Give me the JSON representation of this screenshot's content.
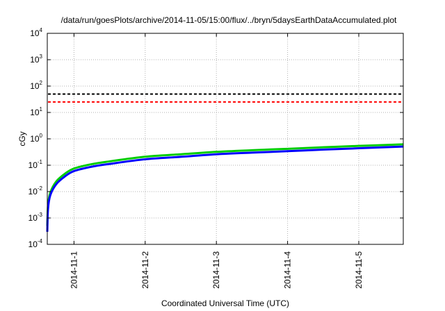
{
  "chart_data": {
    "type": "line",
    "title": "/data/run/goesPlots/archive/2014-11-05/15:00/flux/../bryn/5daysEarthDataAccumulated.plot",
    "xlabel": "Coordinated Universal Time (UTC)",
    "ylabel": "cGy",
    "yscale": "log",
    "ylim": [
      0.0001,
      10000
    ],
    "xlim": [
      "2014-10-31T15:00",
      "2014-11-05T15:00"
    ],
    "grid": true,
    "x_ticks": [
      "2014-11-1",
      "2014-11-2",
      "2014-11-3",
      "2014-11-4",
      "2014-11-5"
    ],
    "y_ticks": [
      {
        "base": "10",
        "exp": "-4",
        "value": 0.0001
      },
      {
        "base": "10",
        "exp": "-3",
        "value": 0.001
      },
      {
        "base": "10",
        "exp": "-2",
        "value": 0.01
      },
      {
        "base": "10",
        "exp": "-1",
        "value": 0.1
      },
      {
        "base": "10",
        "exp": "0",
        "value": 1
      },
      {
        "base": "10",
        "exp": "1",
        "value": 10
      },
      {
        "base": "10",
        "exp": "2",
        "value": 100
      },
      {
        "base": "10",
        "exp": "3",
        "value": 1000
      },
      {
        "base": "10",
        "exp": "4",
        "value": 10000
      }
    ],
    "reference_lines": [
      {
        "value": 50,
        "color": "#000000",
        "style": "dashed"
      },
      {
        "value": 25,
        "color": "#ff0000",
        "style": "dashed"
      }
    ],
    "series": [
      {
        "color": "#00cc00",
        "x": [
          "2014-10-31T15:00",
          "2014-10-31T15:15",
          "2014-10-31T16:00",
          "2014-10-31T18:00",
          "2014-10-31T21:00",
          "2014-11-01T00:00",
          "2014-11-01T06:00",
          "2014-11-01T12:00",
          "2014-11-02T00:00",
          "2014-11-02T12:00",
          "2014-11-03T00:00",
          "2014-11-03T12:00",
          "2014-11-04T00:00",
          "2014-11-04T12:00",
          "2014-11-05T00:00",
          "2014-11-05T15:00"
        ],
        "values": [
          0.0005,
          0.003,
          0.009,
          0.024,
          0.048,
          0.075,
          0.11,
          0.14,
          0.21,
          0.26,
          0.32,
          0.37,
          0.42,
          0.48,
          0.54,
          0.62
        ]
      },
      {
        "color": "#0000ff",
        "x": [
          "2014-10-31T15:00",
          "2014-10-31T15:15",
          "2014-10-31T16:00",
          "2014-10-31T18:00",
          "2014-10-31T21:00",
          "2014-11-01T00:00",
          "2014-11-01T06:00",
          "2014-11-01T12:00",
          "2014-11-02T00:00",
          "2014-11-02T12:00",
          "2014-11-03T00:00",
          "2014-11-03T12:00",
          "2014-11-04T00:00",
          "2014-11-04T12:00",
          "2014-11-05T00:00",
          "2014-11-05T15:00"
        ],
        "values": [
          0.0003,
          0.0022,
          0.0072,
          0.019,
          0.038,
          0.06,
          0.088,
          0.112,
          0.168,
          0.208,
          0.26,
          0.3,
          0.34,
          0.39,
          0.44,
          0.51
        ]
      }
    ]
  }
}
